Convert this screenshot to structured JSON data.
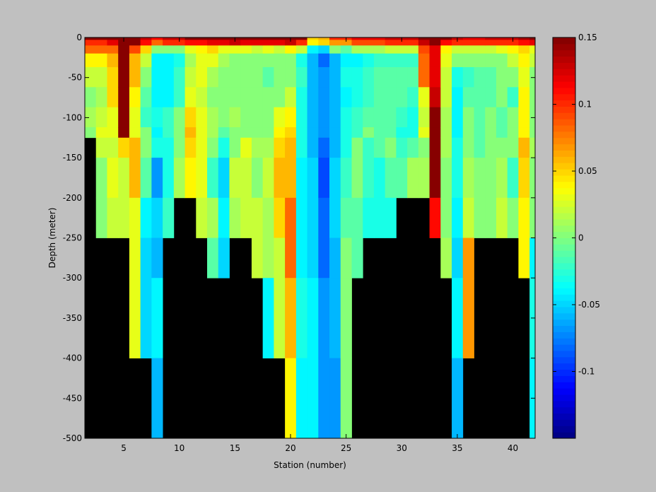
{
  "chart_data": {
    "type": "heatmap",
    "title": "",
    "xlabel": "Station (number)",
    "ylabel": "Depth (meter)",
    "xlim": [
      1.5,
      42
    ],
    "ylim": [
      -500,
      0
    ],
    "x_ticks": [
      5,
      10,
      15,
      20,
      25,
      30,
      35,
      40
    ],
    "y_ticks": [
      0,
      -50,
      -100,
      -150,
      -200,
      -250,
      -300,
      -350,
      -400,
      -450,
      -500
    ],
    "background_color": "#000000",
    "colorbar": {
      "colormap": "jet",
      "clim": [
        -0.15,
        0.15
      ],
      "ticks": [
        0.15,
        0.1,
        0.05,
        0,
        -0.05,
        -0.1
      ],
      "tick_labels": [
        "0.15",
        "0.1",
        "0.05",
        "0",
        "-0.05",
        "-0.1"
      ]
    },
    "layer_edges": [
      0,
      -3,
      -10,
      -20,
      -37,
      -62,
      -87,
      -112,
      -125,
      -150,
      -200,
      -250,
      -300,
      -400,
      -500
    ],
    "stations": [
      {
        "x": 2,
        "values": [
          0.15,
          0.1,
          0.08,
          0.04,
          0.02,
          0.0,
          0.01,
          0.0
        ]
      },
      {
        "x": 3,
        "values": [
          0.15,
          0.1,
          0.08,
          0.04,
          0.02,
          0.01,
          0.02,
          0.03,
          0.02,
          0.0,
          0.0
        ]
      },
      {
        "x": 4,
        "values": [
          0.15,
          0.12,
          0.08,
          0.06,
          0.05,
          0.05,
          0.03,
          0.03,
          0.02,
          0.03,
          0.02
        ]
      },
      {
        "x": 5,
        "values": [
          0.15,
          0.15,
          0.15,
          0.15,
          0.15,
          0.15,
          0.15,
          0.15,
          0.05,
          0.02,
          0.02
        ]
      },
      {
        "x": 6,
        "values": [
          0.15,
          0.15,
          0.09,
          0.06,
          0.06,
          0.04,
          0.03,
          0.03,
          0.06,
          0.06,
          0.03,
          0.03,
          0.03
        ]
      },
      {
        "x": 7,
        "values": [
          0.13,
          0.11,
          0.05,
          0.02,
          0.0,
          -0.01,
          -0.02,
          0.0,
          0.0,
          -0.01,
          -0.04,
          -0.05,
          -0.05
        ]
      },
      {
        "x": 8,
        "values": [
          0.11,
          0.08,
          0.0,
          -0.04,
          -0.04,
          -0.04,
          -0.03,
          -0.04,
          -0.03,
          -0.07,
          -0.05,
          -0.06,
          -0.04,
          -0.06
        ]
      },
      {
        "x": 9,
        "values": [
          0.13,
          0.1,
          0.0,
          -0.04,
          -0.04,
          -0.04,
          -0.02,
          -0.02,
          -0.03,
          -0.03,
          -0.02
        ]
      },
      {
        "x": 10,
        "values": [
          0.13,
          0.1,
          0.0,
          -0.03,
          -0.02,
          -0.02,
          0.0,
          0.0,
          0.0,
          0.01
        ]
      },
      {
        "x": 11,
        "values": [
          0.15,
          0.11,
          0.03,
          0.01,
          0.02,
          0.03,
          0.05,
          0.06,
          0.05,
          0.04
        ]
      },
      {
        "x": 12,
        "values": [
          0.15,
          0.11,
          0.04,
          0.03,
          0.03,
          0.02,
          0.03,
          0.03,
          0.03,
          0.03,
          0.02
        ]
      },
      {
        "x": 13,
        "values": [
          0.15,
          0.12,
          0.05,
          0.03,
          0.01,
          0.0,
          0.01,
          0.01,
          0.0,
          -0.02,
          0.01,
          -0.01
        ]
      },
      {
        "x": 14,
        "values": [
          0.15,
          0.12,
          0.03,
          0.01,
          0.0,
          0.0,
          0.0,
          -0.01,
          -0.03,
          -0.05,
          -0.04,
          -0.05
        ]
      },
      {
        "x": 15,
        "values": [
          0.15,
          0.13,
          0.03,
          0.0,
          0.0,
          0.0,
          0.01,
          0.0,
          0.0,
          0.02,
          0.01
        ]
      },
      {
        "x": 16,
        "values": [
          0.15,
          0.12,
          0.03,
          0.0,
          0.0,
          0.0,
          0.0,
          0.0,
          0.03,
          0.02,
          0.02
        ]
      },
      {
        "x": 17,
        "values": [
          0.15,
          0.12,
          0.02,
          0.0,
          0.0,
          0.0,
          0.0,
          0.0,
          0.01,
          0.0,
          0.02,
          0.02
        ]
      },
      {
        "x": 18,
        "values": [
          0.15,
          0.12,
          0.03,
          0.0,
          -0.01,
          0.0,
          0.0,
          0.0,
          0.01,
          0.02,
          0.01,
          0.01,
          -0.04
        ]
      },
      {
        "x": 19,
        "values": [
          0.15,
          0.12,
          0.02,
          0.0,
          0.0,
          0.0,
          0.03,
          0.04,
          0.05,
          0.06,
          0.05,
          0.02,
          0.02
        ]
      },
      {
        "x": 20,
        "values": [
          0.15,
          0.13,
          0.04,
          0.0,
          0.0,
          0.02,
          0.04,
          0.05,
          0.06,
          0.06,
          0.08,
          0.08,
          0.06,
          0.04
        ]
      },
      {
        "x": 21,
        "values": [
          0.15,
          0.1,
          0.02,
          -0.03,
          -0.02,
          -0.03,
          -0.03,
          -0.03,
          -0.03,
          -0.04,
          -0.04,
          -0.04,
          -0.03,
          -0.04,
          -0.04
        ]
      },
      {
        "x": 22,
        "values": [
          0.05,
          0.04,
          -0.04,
          -0.06,
          -0.06,
          -0.06,
          -0.06,
          -0.06,
          -0.06,
          -0.05,
          -0.05,
          -0.05,
          -0.04,
          -0.04,
          -0.04
        ]
      },
      {
        "x": 23,
        "values": [
          0.06,
          0.05,
          -0.05,
          -0.08,
          -0.07,
          -0.07,
          -0.07,
          -0.07,
          -0.08,
          -0.09,
          -0.08,
          -0.08,
          -0.07,
          -0.07,
          -0.09
        ]
      },
      {
        "x": 24,
        "values": [
          0.1,
          0.07,
          0.0,
          -0.06,
          -0.06,
          -0.06,
          -0.06,
          -0.06,
          -0.06,
          -0.05,
          -0.05,
          -0.06,
          -0.06,
          -0.07,
          -0.07
        ]
      },
      {
        "x": 25,
        "values": [
          0.1,
          0.07,
          -0.01,
          -0.04,
          -0.03,
          -0.04,
          -0.03,
          -0.03,
          -0.03,
          -0.02,
          -0.01,
          0.0,
          0.0,
          0.0
        ]
      },
      {
        "x": 26,
        "values": [
          0.12,
          0.09,
          0.01,
          -0.04,
          -0.03,
          -0.03,
          -0.02,
          -0.02,
          0.0,
          0.0,
          -0.01,
          -0.01
        ]
      },
      {
        "x": 27,
        "values": [
          0.12,
          0.09,
          0.01,
          -0.03,
          -0.02,
          -0.02,
          -0.01,
          0.0,
          -0.02,
          -0.02,
          -0.03
        ]
      },
      {
        "x": 28,
        "values": [
          0.12,
          0.09,
          0.01,
          -0.02,
          -0.01,
          -0.01,
          -0.01,
          -0.01,
          -0.01,
          -0.03,
          -0.03
        ]
      },
      {
        "x": 29,
        "values": [
          0.13,
          0.1,
          0.02,
          -0.02,
          -0.01,
          -0.01,
          -0.01,
          -0.01,
          0.0,
          -0.01,
          -0.03
        ]
      },
      {
        "x": 30,
        "values": [
          0.13,
          0.1,
          0.02,
          -0.02,
          -0.01,
          -0.01,
          -0.02,
          -0.03,
          -0.02,
          -0.01
        ]
      },
      {
        "x": 31,
        "values": [
          0.13,
          0.1,
          0.02,
          -0.02,
          -0.01,
          -0.02,
          -0.03,
          -0.03,
          -0.01,
          0.01
        ]
      },
      {
        "x": 32,
        "values": [
          0.15,
          0.13,
          0.09,
          0.08,
          0.08,
          0.03,
          0.02,
          0.03,
          0.0,
          0.01
        ]
      },
      {
        "x": 33,
        "values": [
          0.15,
          0.15,
          0.12,
          0.12,
          0.12,
          0.13,
          0.15,
          0.15,
          0.15,
          0.15,
          0.11
        ]
      },
      {
        "x": 34,
        "values": [
          0.15,
          0.11,
          0.04,
          0.03,
          0.02,
          0.02,
          0.01,
          0.01,
          0.01,
          0.0,
          0.0,
          0.01
        ]
      },
      {
        "x": 35,
        "values": [
          0.13,
          0.1,
          0.02,
          0.0,
          -0.03,
          -0.04,
          -0.04,
          -0.04,
          -0.03,
          -0.03,
          -0.04,
          -0.05,
          -0.04,
          -0.06
        ]
      },
      {
        "x": 36,
        "values": [
          0.12,
          0.1,
          0.02,
          0.0,
          -0.02,
          -0.01,
          0.0,
          0.0,
          0.0,
          0.01,
          0.02,
          0.07,
          0.07
        ]
      },
      {
        "x": 37,
        "values": [
          0.12,
          0.1,
          0.02,
          0.0,
          -0.01,
          -0.01,
          -0.01,
          -0.01,
          -0.01,
          0.0,
          0.0
        ]
      },
      {
        "x": 38,
        "values": [
          0.13,
          0.1,
          0.02,
          0.0,
          -0.01,
          -0.01,
          0.0,
          0.0,
          0.0,
          0.0,
          0.0
        ]
      },
      {
        "x": 39,
        "values": [
          0.13,
          0.1,
          0.03,
          0.0,
          0.0,
          0.0,
          -0.01,
          -0.01,
          0.0,
          0.01,
          0.02
        ]
      },
      {
        "x": 40,
        "values": [
          0.13,
          0.1,
          0.04,
          0.02,
          0.0,
          -0.02,
          0.0,
          0.0,
          0.0,
          -0.02,
          0.0
        ]
      },
      {
        "x": 41,
        "values": [
          0.14,
          0.11,
          0.05,
          0.04,
          0.03,
          0.04,
          0.04,
          0.04,
          0.06,
          0.05,
          0.04,
          0.04
        ]
      },
      {
        "x": 42,
        "values": [
          0.15,
          0.12,
          0.03,
          0.02,
          0.0,
          0.0,
          0.0,
          0.0,
          0.01,
          0.0,
          0.0,
          -0.04,
          -0.03,
          -0.04
        ]
      }
    ]
  }
}
